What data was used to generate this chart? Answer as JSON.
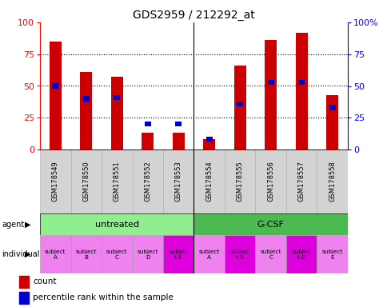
{
  "title": "GDS2959 / 212292_at",
  "samples": [
    "GSM178549",
    "GSM178550",
    "GSM178551",
    "GSM178552",
    "GSM178553",
    "GSM178554",
    "GSM178555",
    "GSM178556",
    "GSM178557",
    "GSM178558"
  ],
  "red_values": [
    85,
    61,
    57,
    13,
    13,
    8,
    66,
    86,
    92,
    43
  ],
  "blue_values": [
    50,
    40,
    41,
    20,
    20,
    8,
    36,
    53,
    53,
    33
  ],
  "agent_groups": [
    {
      "label": "untreated",
      "start": 0,
      "end": 5,
      "color": "#90ee90"
    },
    {
      "label": "G-CSF",
      "start": 5,
      "end": 10,
      "color": "#4cba50"
    }
  ],
  "individual_labels": [
    "subject\nA",
    "subject\nB",
    "subject\nC",
    "subject\nD",
    "subjec\nt E",
    "subject\nA",
    "subjec\nt B",
    "subject\nC",
    "subjec\nt D",
    "subject\nE"
  ],
  "individual_highlight": [
    false,
    false,
    false,
    false,
    true,
    false,
    true,
    false,
    true,
    false
  ],
  "bar_width": 0.38,
  "red_color": "#cc0000",
  "blue_color": "#0000cc",
  "background_color": "#ffffff",
  "sample_bg": "#d3d3d3",
  "indiv_color_normal": "#ee82ee",
  "indiv_color_highlight": "#dd00dd"
}
